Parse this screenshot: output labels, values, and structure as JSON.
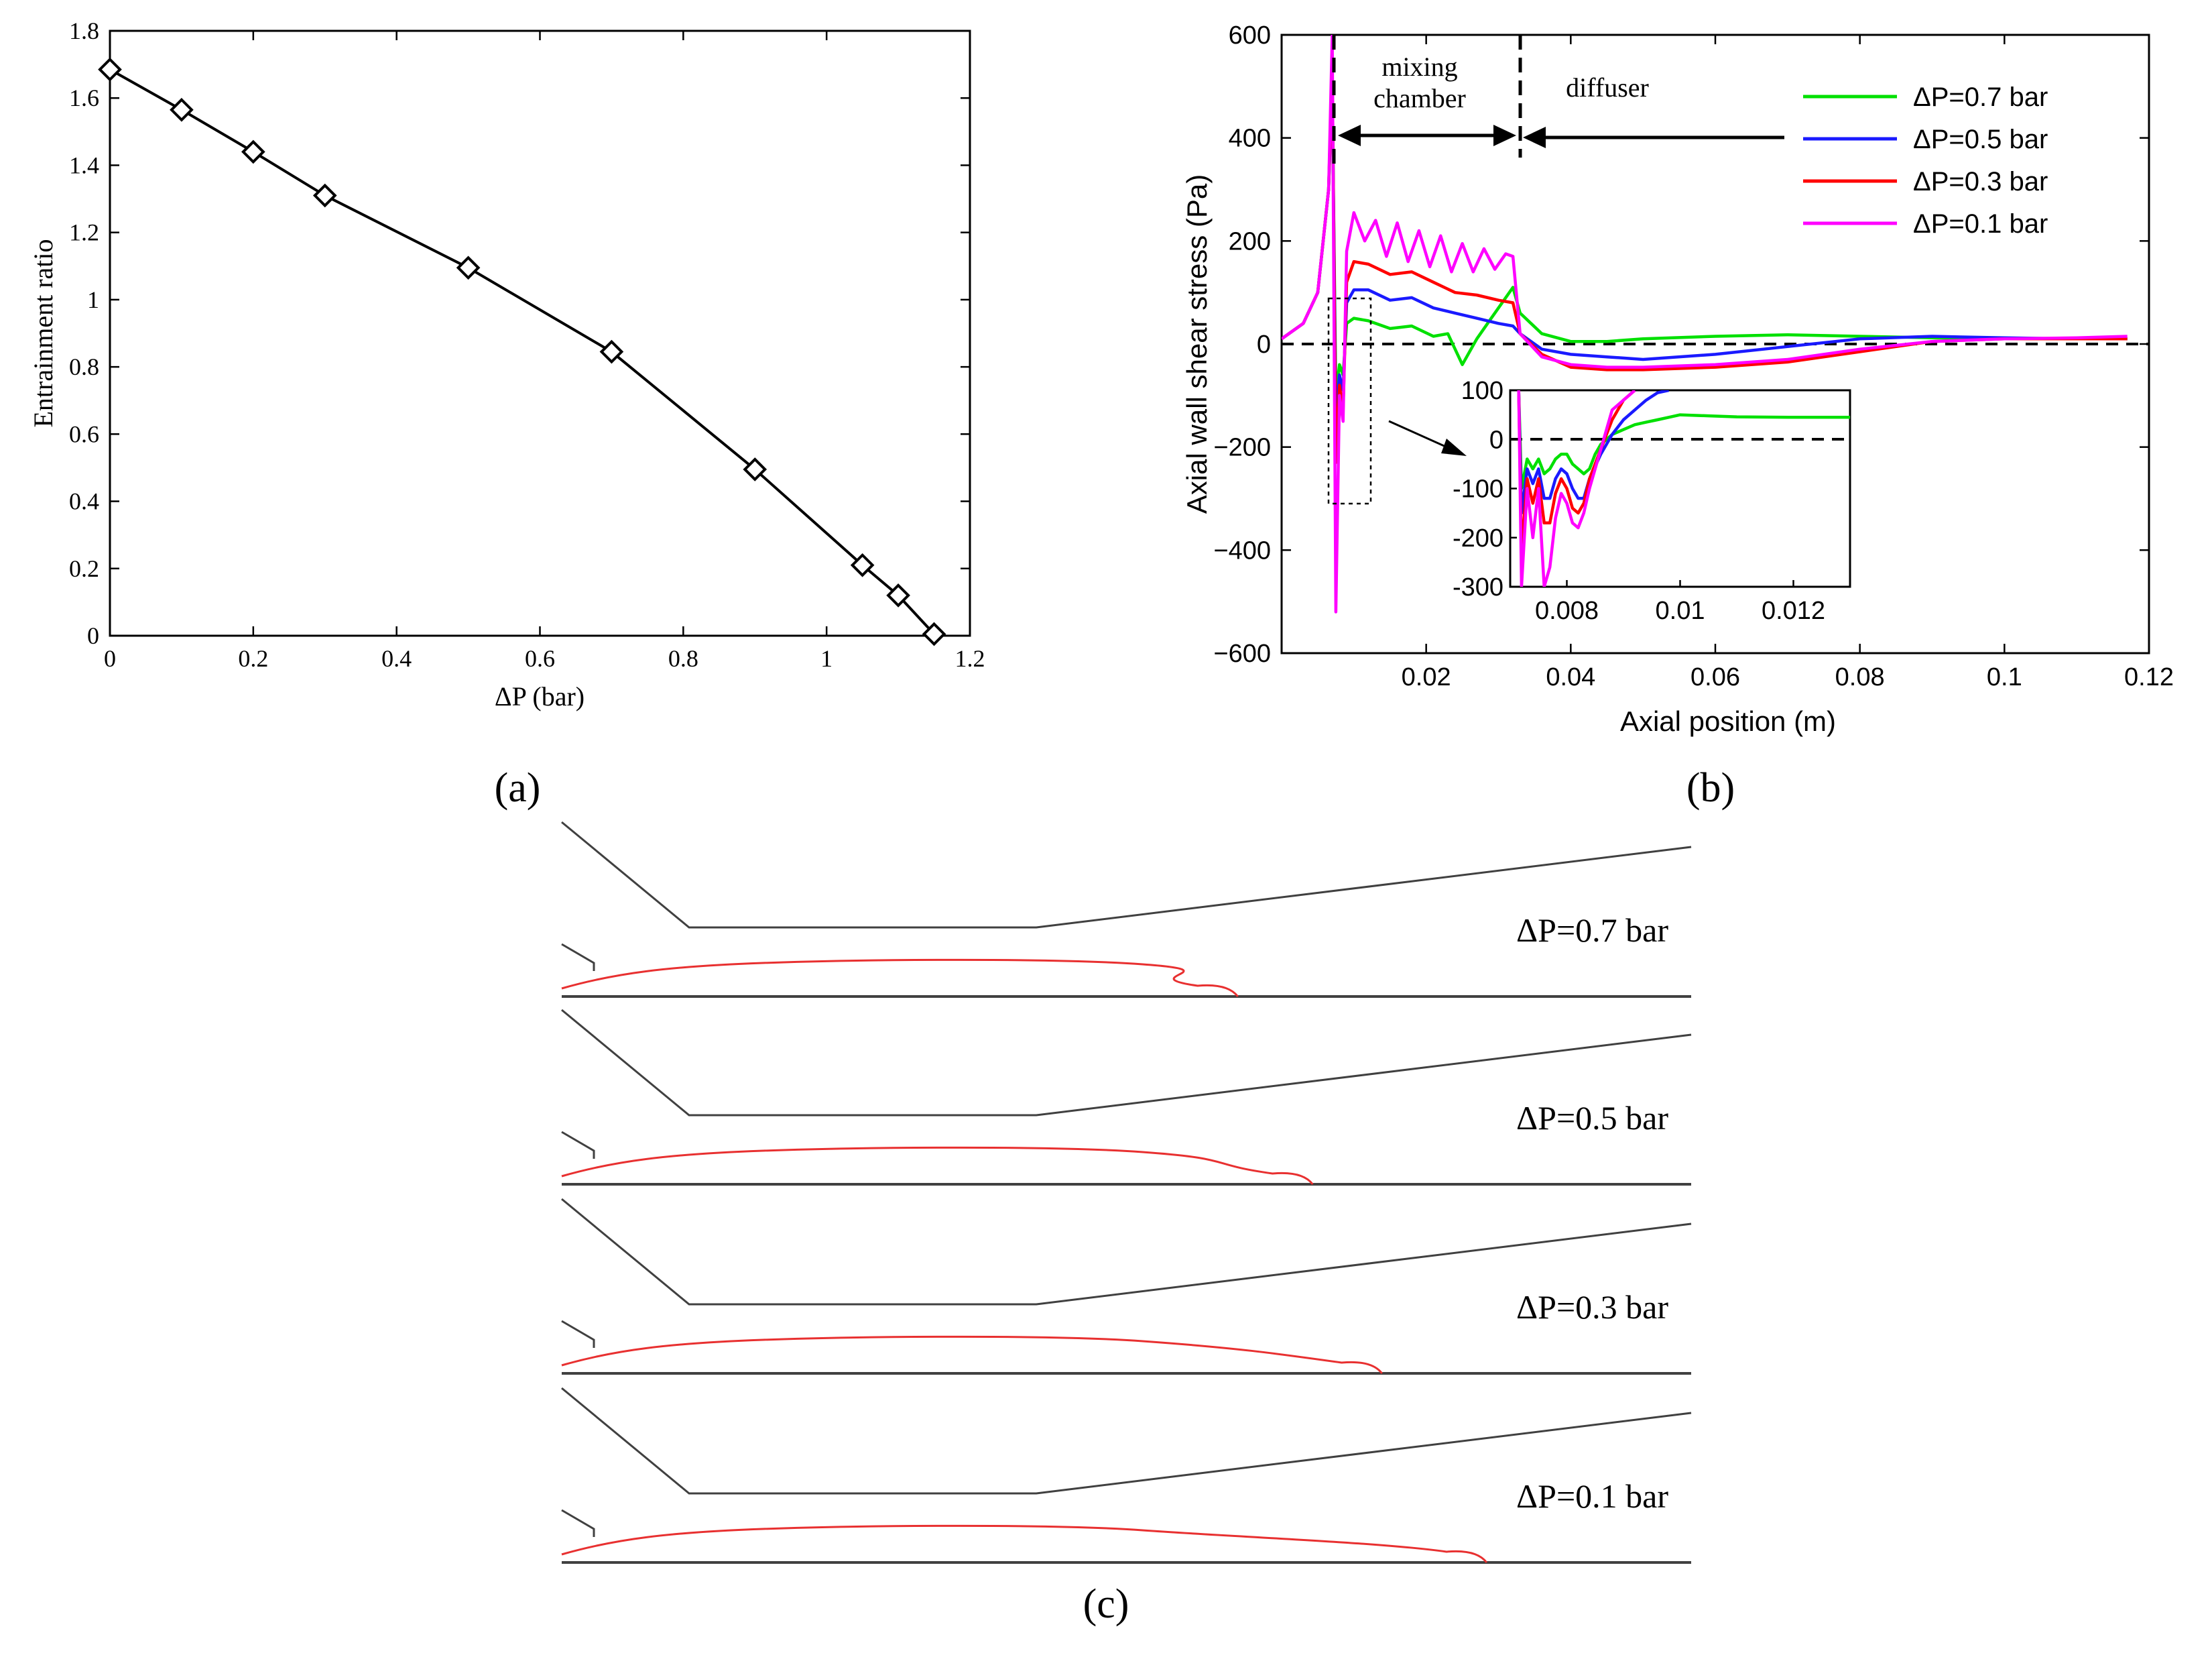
{
  "chart_data": [
    {
      "type": "line",
      "panel_label": "(a)",
      "xlabel": "ΔP (bar)",
      "ylabel": "Entrainment ratio",
      "xlim": [
        0,
        1.2
      ],
      "ylim": [
        0,
        1.8
      ],
      "xticks": [
        "0",
        "0.2",
        "0.4",
        "0.6",
        "0.8",
        "1",
        "1.2"
      ],
      "yticks": [
        "0",
        "0.2",
        "0.4",
        "0.6",
        "0.8",
        "1",
        "1.2",
        "1.4",
        "1.6",
        "1.8"
      ],
      "x": [
        0,
        0.1,
        0.2,
        0.3,
        0.5,
        0.7,
        0.9,
        1.05,
        1.1,
        1.15
      ],
      "values": [
        1.685,
        1.565,
        1.44,
        1.31,
        1.095,
        0.845,
        0.495,
        0.21,
        0.12,
        0.005
      ],
      "marker": "diamond"
    },
    {
      "type": "line",
      "panel_label": "(b)",
      "xlabel": "Axial position (m)",
      "ylabel": "Axial wall shear stress (Pa)",
      "xlim": [
        0,
        0.12
      ],
      "ylim": [
        -600,
        600
      ],
      "xticks": [
        "0.02",
        "0.04",
        "0.06",
        "0.08",
        "0.1",
        "0.12"
      ],
      "yticks": [
        "−600",
        "−400",
        "−200",
        "0",
        "200",
        "400",
        "600"
      ],
      "annotations": [
        "mixing chamber",
        "diffuser"
      ],
      "legend_position": "top-right",
      "series": [
        {
          "name": "ΔP=0.7 bar",
          "color": "#00e000",
          "x": [
            0,
            0.003,
            0.005,
            0.0065,
            0.007,
            0.0075,
            0.008,
            0.0085,
            0.009,
            0.01,
            0.012,
            0.015,
            0.018,
            0.021,
            0.023,
            0.025,
            0.027,
            0.029,
            0.031,
            0.032,
            0.033,
            0.036,
            0.04,
            0.045,
            0.05,
            0.06,
            0.07,
            0.08,
            0.09,
            0.1,
            0.11,
            0.117
          ],
          "y": [
            10,
            40,
            100,
            300,
            500,
            -100,
            -40,
            -60,
            40,
            50,
            45,
            30,
            35,
            15,
            20,
            -40,
            10,
            50,
            90,
            110,
            60,
            20,
            5,
            5,
            10,
            15,
            18,
            15,
            12,
            10,
            10,
            10
          ]
        },
        {
          "name": "ΔP=0.5 bar",
          "color": "#1a1aff",
          "x": [
            0,
            0.003,
            0.005,
            0.0065,
            0.007,
            0.0075,
            0.008,
            0.0085,
            0.009,
            0.01,
            0.012,
            0.015,
            0.018,
            0.021,
            0.024,
            0.027,
            0.03,
            0.032,
            0.033,
            0.036,
            0.04,
            0.045,
            0.05,
            0.06,
            0.07,
            0.08,
            0.09,
            0.1,
            0.11,
            0.117
          ],
          "y": [
            10,
            40,
            100,
            300,
            520,
            -150,
            -60,
            -90,
            80,
            105,
            105,
            85,
            90,
            70,
            60,
            50,
            40,
            35,
            20,
            -10,
            -20,
            -25,
            -30,
            -20,
            -5,
            10,
            15,
            12,
            10,
            10
          ]
        },
        {
          "name": "ΔP=0.3 bar",
          "color": "#ff0000",
          "x": [
            0,
            0.003,
            0.005,
            0.0065,
            0.007,
            0.0075,
            0.008,
            0.0085,
            0.009,
            0.01,
            0.012,
            0.015,
            0.018,
            0.021,
            0.024,
            0.027,
            0.03,
            0.032,
            0.033,
            0.036,
            0.04,
            0.045,
            0.05,
            0.06,
            0.07,
            0.08,
            0.09,
            0.1,
            0.11,
            0.117
          ],
          "y": [
            10,
            40,
            100,
            300,
            540,
            -230,
            -80,
            -130,
            120,
            160,
            155,
            135,
            140,
            120,
            100,
            95,
            85,
            80,
            20,
            -20,
            -45,
            -50,
            -50,
            -45,
            -35,
            -15,
            5,
            10,
            10,
            10
          ]
        },
        {
          "name": "ΔP=0.1 bar",
          "color": "#ff00ff",
          "x": [
            0,
            0.003,
            0.005,
            0.0065,
            0.007,
            0.0075,
            0.008,
            0.0085,
            0.009,
            0.01,
            0.0115,
            0.013,
            0.0145,
            0.016,
            0.0175,
            0.019,
            0.0205,
            0.022,
            0.0235,
            0.025,
            0.0265,
            0.028,
            0.0295,
            0.031,
            0.032,
            0.033,
            0.036,
            0.04,
            0.045,
            0.05,
            0.06,
            0.07,
            0.08,
            0.09,
            0.1,
            0.11,
            0.117
          ],
          "y": [
            10,
            40,
            100,
            300,
            600,
            -520,
            -100,
            -150,
            180,
            255,
            200,
            240,
            170,
            235,
            160,
            220,
            150,
            210,
            140,
            195,
            140,
            185,
            145,
            175,
            170,
            20,
            -25,
            -40,
            -45,
            -45,
            -40,
            -30,
            -10,
            5,
            10,
            12,
            15
          ]
        }
      ],
      "inset": {
        "xlim": [
          0.007,
          0.013
        ],
        "ylim": [
          -300,
          100
        ],
        "xticks": [
          "0.008",
          "0.01",
          "0.012"
        ],
        "yticks": [
          "-300",
          "-200",
          "-100",
          "0",
          "100"
        ],
        "series": [
          {
            "name": "ΔP=0.7 bar",
            "color": "#00e000",
            "x": [
              0.00715,
              0.0072,
              0.0073,
              0.0074,
              0.0075,
              0.0076,
              0.0077,
              0.0078,
              0.0079,
              0.008,
              0.0081,
              0.0082,
              0.0083,
              0.0084,
              0.0085,
              0.0086,
              0.0087,
              0.0088,
              0.009,
              0.0092,
              0.0094,
              0.0096,
              0.0098,
              0.01,
              0.0105,
              0.011,
              0.012,
              0.013
            ],
            "y": [
              100,
              -100,
              -40,
              -60,
              -40,
              -70,
              -60,
              -40,
              -30,
              -30,
              -50,
              -60,
              -70,
              -60,
              -30,
              -10,
              0,
              10,
              20,
              30,
              35,
              40,
              45,
              50,
              48,
              46,
              45,
              45
            ]
          },
          {
            "name": "ΔP=0.5 bar",
            "color": "#1a1aff",
            "x": [
              0.00715,
              0.0072,
              0.0073,
              0.0074,
              0.0075,
              0.0076,
              0.0077,
              0.0078,
              0.0079,
              0.008,
              0.0081,
              0.0082,
              0.0083,
              0.0084,
              0.0086,
              0.0088,
              0.009,
              0.0092,
              0.0094,
              0.0096,
              0.0098
            ],
            "y": [
              100,
              -150,
              -60,
              -90,
              -60,
              -120,
              -120,
              -80,
              -60,
              -70,
              -100,
              -120,
              -120,
              -80,
              -30,
              10,
              40,
              60,
              80,
              95,
              100
            ]
          },
          {
            "name": "ΔP=0.3 bar",
            "color": "#ff0000",
            "x": [
              0.00715,
              0.0072,
              0.0073,
              0.0074,
              0.0075,
              0.0076,
              0.0077,
              0.0078,
              0.0079,
              0.008,
              0.0081,
              0.0082,
              0.0083,
              0.0084,
              0.0086,
              0.0088,
              0.009,
              0.0092
            ],
            "y": [
              100,
              -230,
              -80,
              -130,
              -80,
              -170,
              -170,
              -110,
              -80,
              -100,
              -140,
              -150,
              -130,
              -80,
              -20,
              40,
              80,
              100
            ]
          },
          {
            "name": "ΔP=0.1 bar",
            "color": "#ff00ff",
            "x": [
              0.00715,
              0.0072,
              0.0073,
              0.0074,
              0.0075,
              0.0076,
              0.0077,
              0.0078,
              0.0079,
              0.008,
              0.0081,
              0.0082,
              0.0083,
              0.0084,
              0.0086,
              0.0088,
              0.0092
            ],
            "y": [
              100,
              -300,
              -100,
              -200,
              -100,
              -300,
              -260,
              -160,
              -110,
              -130,
              -170,
              -180,
              -150,
              -100,
              -20,
              60,
              100
            ]
          }
        ]
      }
    }
  ],
  "panel_c": {
    "label": "(c)",
    "cases": [
      {
        "label": "ΔP=0.7 bar",
        "jet_end": 0.5986
      },
      {
        "label": "ΔP=0.5 bar",
        "jet_end": 0.6649
      },
      {
        "label": "ΔP=0.3 bar",
        "jet_end": 0.7262
      },
      {
        "label": "ΔP=0.1 bar",
        "jet_end": 0.8189
      }
    ]
  },
  "colors": {
    "axis": "#000000",
    "wall": "#404040",
    "jet": "#e83030"
  }
}
